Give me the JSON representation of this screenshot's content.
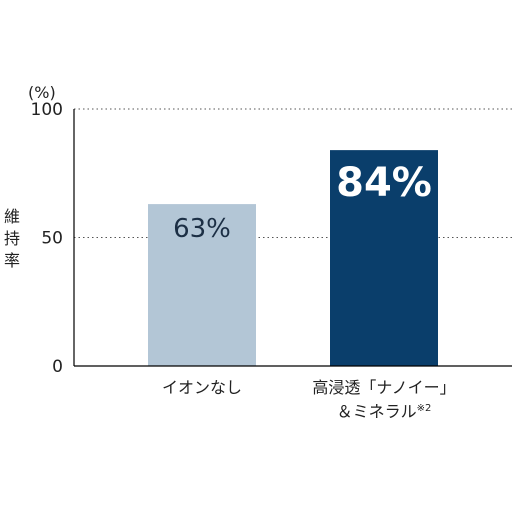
{
  "chart_data": {
    "type": "bar",
    "categories": [
      "イオンなし",
      "高浸透「ナノイー」\n＆ミネラル※2"
    ],
    "values": [
      63,
      84
    ],
    "value_labels": [
      "63%",
      "84%"
    ],
    "ylabel": "維持率",
    "yunit": "(%)",
    "yticks": [
      0,
      50,
      100
    ],
    "ylim": [
      0,
      100
    ],
    "grid": "dotted horizontal at 50 and 100",
    "colors": [
      "#b3c6d6",
      "#0a3e6b"
    ],
    "value_label_colors": [
      "#1c2f45",
      "#ffffff"
    ]
  }
}
